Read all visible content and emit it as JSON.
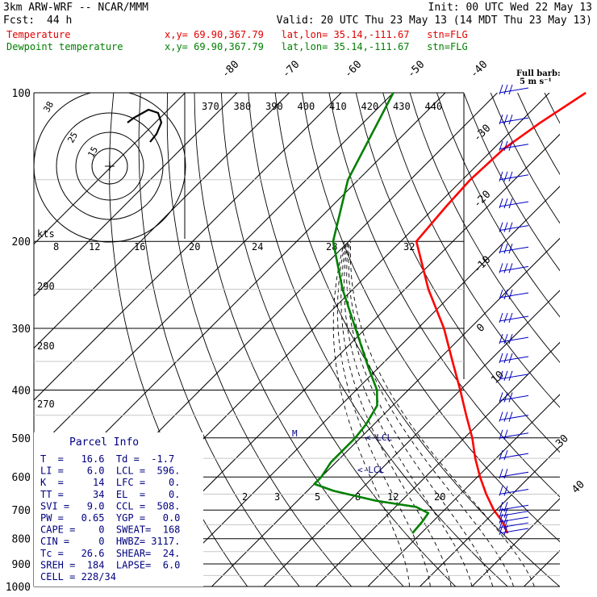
{
  "header": {
    "model": "3km ARW-WRF -- NCAR/MMM",
    "init": "Init: 00 UTC Wed 22 May 13",
    "fcst_label": "Fcst:",
    "fcst_value": "44 h",
    "valid": "Valid: 20 UTC Thu 23 May 13 (14 MDT Thu 23 May 13)",
    "temp_label": "Temperature",
    "temp_loc": "x,y= 69.90,367.79   lat,lon= 35.14,-111.67   stn=FLG",
    "dewp_label": "Dewpoint temperature",
    "dewp_loc": "x,y= 69.90,367.79   lat,lon= 35.14,-111.67   stn=FLG"
  },
  "colors": {
    "temperature": "#ff0000",
    "dewpoint": "#008000",
    "parcel_text": "#000080",
    "grid": "#000000",
    "barb": "#0000c0"
  },
  "barb_note": {
    "line1": "Full barb:",
    "line2": "5 m s⁻¹"
  },
  "chart_data": {
    "type": "skew-t log-p",
    "pressure_levels": [
      100,
      200,
      300,
      400,
      500,
      600,
      700,
      800,
      900,
      1000
    ],
    "pressure_labels": [
      "100",
      "200",
      "300",
      "400",
      "500",
      "600",
      "700",
      "800",
      "900",
      "1000"
    ],
    "isotherm_labels": [
      "-80",
      "-70",
      "-60",
      "-50",
      "-40",
      "-30",
      "-20",
      "-10",
      "0",
      "10",
      "30",
      "40"
    ],
    "theta_labels_top": [
      "370",
      "380",
      "390",
      "400",
      "410",
      "420",
      "430",
      "440"
    ],
    "theta_labels_left": [
      "290",
      "280",
      "270"
    ],
    "mixing_ratio_labels": [
      "2",
      "3",
      "5",
      "8",
      "12",
      "20"
    ],
    "hodograph_ring_labels": [
      "25",
      "15",
      "38"
    ],
    "hodograph_units": "kts",
    "hodograph_axis_labels": [
      "8",
      "12",
      "16",
      "20",
      "24",
      "28",
      "32"
    ],
    "lcl_markers": [
      "<-LCL",
      "<-LCL"
    ],
    "m_marker": "M",
    "temperature": {
      "name": "Temperature",
      "p": [
        780,
        740,
        700,
        650,
        600,
        550,
        500,
        450,
        400,
        350,
        300,
        250,
        200,
        170,
        150,
        130,
        115,
        100
      ],
      "t": [
        16.6,
        13.5,
        9.5,
        5.0,
        0.5,
        -4.0,
        -8.5,
        -14.0,
        -20.0,
        -27.0,
        -35.0,
        -45.5,
        -57.0,
        -58.0,
        -58.5,
        -58.0,
        -56.0,
        -53.0
      ]
    },
    "dewpoint": {
      "name": "Dewpoint temperature",
      "p": [
        780,
        740,
        710,
        690,
        670,
        640,
        620,
        600,
        560,
        530,
        500,
        470,
        430,
        400,
        360,
        300,
        250,
        200,
        150,
        100
      ],
      "td": [
        -1.7,
        -2.0,
        -2.5,
        -6.0,
        -15.0,
        -25.0,
        -30.0,
        -30.0,
        -31.0,
        -31.0,
        -31.0,
        -31.5,
        -33.0,
        -36.0,
        -42.0,
        -52.0,
        -62.0,
        -73.0,
        -82.0,
        -90.0
      ]
    },
    "wind_barbs_pressure": [
      100,
      115,
      130,
      150,
      170,
      190,
      210,
      230,
      260,
      290,
      320,
      350,
      380,
      420,
      460,
      500,
      550,
      600,
      650,
      700,
      720,
      740,
      760,
      780
    ]
  },
  "parcel_info": {
    "title": "Parcel Info",
    "rows": [
      "T  =   16.6  Td =  -1.7",
      "LI =    6.0  LCL =  596.",
      "K  =     14  LFC =    0.",
      "TT =     34  EL  =    0.",
      "SVI =   9.0  CCL =  508.",
      "PW =   0.65  YGP =   0.0",
      "CAPE =    0  SWEAT=  168",
      "CIN =     0  HWBZ= 3117.",
      "Tc =   26.6  SHEAR=  24.",
      "SREH =  184  LAPSE=  6.0",
      "CELL = 228/34"
    ]
  }
}
